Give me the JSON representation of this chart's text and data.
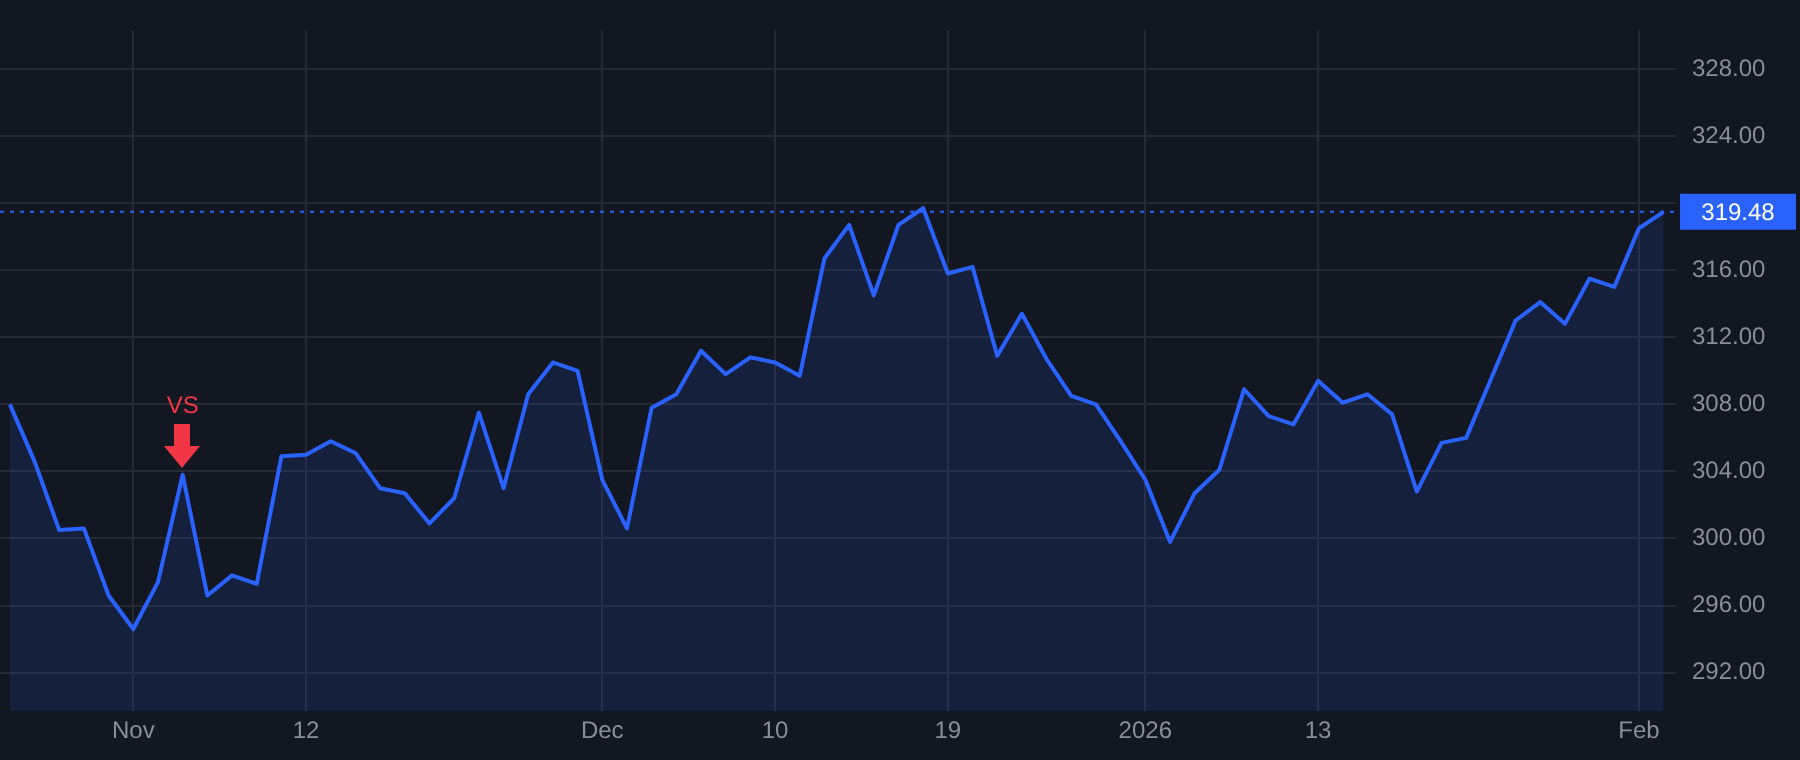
{
  "chart_data": {
    "type": "area",
    "categories": [
      null,
      null,
      null,
      null,
      null,
      "Nov",
      null,
      null,
      null,
      null,
      null,
      null,
      "12",
      null,
      null,
      null,
      null,
      null,
      null,
      null,
      null,
      null,
      null,
      null,
      "Dec",
      null,
      null,
      null,
      null,
      null,
      null,
      "10",
      null,
      null,
      null,
      null,
      null,
      null,
      "19",
      null,
      null,
      null,
      null,
      null,
      null,
      null,
      "2026",
      null,
      null,
      null,
      null,
      null,
      null,
      "13",
      null,
      null,
      null,
      null,
      null,
      null,
      null,
      null,
      null,
      null,
      null,
      null,
      "Feb",
      null
    ],
    "series": [
      {
        "color": "#2962ff",
        "values": [
          308.0,
          304.6,
          300.5,
          300.6,
          296.6,
          294.6,
          297.4,
          303.8,
          296.6,
          297.8,
          297.3,
          304.9,
          305.0,
          305.8,
          305.1,
          303.0,
          302.7,
          300.9,
          302.4,
          307.5,
          303.0,
          308.6,
          310.5,
          310.0,
          303.5,
          300.6,
          307.8,
          308.6,
          311.2,
          309.8,
          310.8,
          310.5,
          309.7,
          316.7,
          318.7,
          314.5,
          318.7,
          319.7,
          315.8,
          316.2,
          310.9,
          313.4,
          310.7,
          308.5,
          308.0,
          305.8,
          303.5,
          299.8,
          302.7,
          304.1,
          308.9,
          307.3,
          306.8,
          309.4,
          308.1,
          308.6,
          307.4,
          302.8,
          305.7,
          306.0,
          309.5,
          313.0,
          314.1,
          312.8,
          315.5,
          315.0,
          318.5,
          319.48
        ]
      }
    ],
    "ylim": [
      289.7,
      330.3
    ],
    "yticks": [
      {
        "value": 292,
        "label": "292.00"
      },
      {
        "value": 296,
        "label": "296.00"
      },
      {
        "value": 300,
        "label": "300.00"
      },
      {
        "value": 304,
        "label": "304.00"
      },
      {
        "value": 308,
        "label": "308.00"
      },
      {
        "value": 312,
        "label": "312.00"
      },
      {
        "value": 316,
        "label": "316.00"
      },
      {
        "value": 320,
        "label": null
      },
      {
        "value": 324,
        "label": "324.00"
      },
      {
        "value": 328,
        "label": "328.00"
      }
    ],
    "ref_lines": [
      {
        "axis": "y",
        "value": 319.48,
        "label": "319.48",
        "color": "#2962ff",
        "line_style": "dotted"
      }
    ],
    "annotations": [
      {
        "text": "VS",
        "y": 303.8
      }
    ],
    "grid": true,
    "legend": false,
    "marker": "none",
    "line_style": "solid"
  }
}
